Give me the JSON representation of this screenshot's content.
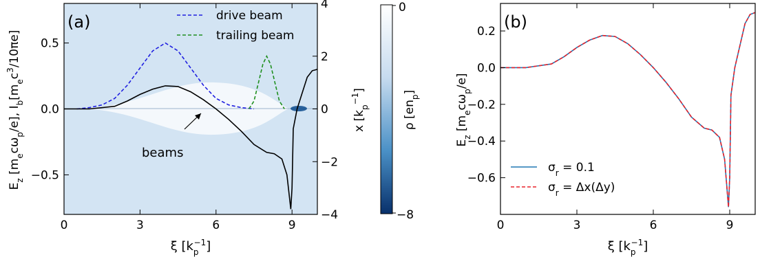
{
  "chart_data": [
    {
      "panel_label": "(a)",
      "type": "line",
      "xlabel": "ξ [k",
      "xlabel_sup": "−1",
      "xlabel_sub": "p",
      "xlabel_tail": "]",
      "ylabel_left": "E",
      "ylabel_left_parts": {
        "a": "z",
        "b": " [m",
        "c": "e",
        "d": "cω",
        "e": "p",
        "f": "/e],  I",
        "g": "b",
        "h": "[m",
        "i": "e",
        "j": "c",
        "k": "3",
        "l": "/10πe]"
      },
      "ylabel_right": "x [k",
      "ylabel_right_sup": "−1",
      "ylabel_right_sub": "p",
      "ylabel_right_tail": "]",
      "xlim": [
        0,
        10
      ],
      "ylim_left": [
        -0.8,
        0.8
      ],
      "ylim_right": [
        -4,
        4
      ],
      "xticks": [
        0,
        3,
        6,
        9
      ],
      "xtick_labels": [
        "0",
        "3",
        "6",
        "9"
      ],
      "yticks_left": [
        -0.5,
        0.0,
        0.5
      ],
      "ytick_labels_left": [
        "−0.5",
        "0.0",
        "0.5"
      ],
      "yticks_right": [
        -4,
        -2,
        0,
        2,
        4
      ],
      "ytick_labels_right": [
        "−4",
        "−2",
        "0",
        "2",
        "4"
      ],
      "legend_position": "top-right",
      "series": [
        {
          "name": "drive beam",
          "style": "dashed",
          "color": "#1f1fe0",
          "x": [
            0.5,
            1,
            1.5,
            2,
            2.5,
            3,
            3.5,
            4,
            4.5,
            5,
            5.5,
            6,
            6.5,
            7,
            7.5
          ],
          "y": [
            0.0,
            0.01,
            0.03,
            0.08,
            0.18,
            0.31,
            0.44,
            0.5,
            0.44,
            0.31,
            0.18,
            0.08,
            0.03,
            0.01,
            0.0
          ]
        },
        {
          "name": "trailing beam",
          "style": "dashed",
          "color": "#1f8f1f",
          "x": [
            7.3,
            7.5,
            7.7,
            7.85,
            8.0,
            8.15,
            8.3,
            8.5,
            8.7
          ],
          "y": [
            0.0,
            0.06,
            0.22,
            0.34,
            0.4,
            0.34,
            0.22,
            0.06,
            0.0
          ]
        },
        {
          "name": "",
          "style": "solid",
          "color": "#000000",
          "x": [
            0,
            1,
            2,
            2.5,
            3,
            3.5,
            4,
            4.5,
            5,
            5.5,
            6,
            6.5,
            7,
            7.5,
            8,
            8.3,
            8.6,
            8.8,
            8.95,
            9.0,
            9.05,
            9.2,
            9.4,
            9.6,
            9.8,
            10
          ],
          "y": [
            0.0,
            0.0,
            0.02,
            0.06,
            0.11,
            0.15,
            0.175,
            0.17,
            0.13,
            0.07,
            0.0,
            -0.08,
            -0.17,
            -0.27,
            -0.33,
            -0.34,
            -0.38,
            -0.5,
            -0.76,
            -0.6,
            -0.15,
            0.0,
            0.12,
            0.24,
            0.29,
            0.3
          ]
        }
      ],
      "annotation": {
        "text": "beams",
        "arrow_to_x": 5.5,
        "arrow_to_y": -0.02,
        "text_x": 4.1,
        "text_y": -0.55
      }
    },
    {
      "panel_label": "(b)",
      "type": "line",
      "xlabel": "ξ [k",
      "xlabel_sup": "−1",
      "xlabel_sub": "p",
      "xlabel_tail": "]",
      "ylabel": "E",
      "ylabel_parts": {
        "a": "z",
        "b": " [m",
        "c": "e",
        "d": "cω",
        "e": "p",
        "f": "/e]"
      },
      "xlim": [
        0,
        10
      ],
      "ylim": [
        -0.8,
        0.35
      ],
      "xticks": [
        0,
        3,
        6,
        9
      ],
      "xtick_labels": [
        "0",
        "3",
        "6",
        "9"
      ],
      "yticks": [
        -0.6,
        -0.4,
        -0.2,
        0.0,
        0.2
      ],
      "ytick_labels": [
        "−0.6",
        "−0.4",
        "−0.2",
        "0.0",
        "0.2"
      ],
      "legend_position": "bottom-left",
      "series": [
        {
          "name": "σ_r = 0.1",
          "label_main": "σ",
          "label_sub": "r",
          "label_tail": " = 0.1",
          "style": "solid",
          "color": "#1f77b4",
          "x": [
            0,
            1,
            2,
            2.5,
            3,
            3.5,
            4,
            4.5,
            5,
            5.5,
            6,
            6.5,
            7,
            7.5,
            8,
            8.3,
            8.6,
            8.8,
            8.95,
            9.0,
            9.05,
            9.2,
            9.4,
            9.6,
            9.8,
            10
          ],
          "y": [
            0.0,
            0.0,
            0.02,
            0.06,
            0.11,
            0.15,
            0.175,
            0.17,
            0.13,
            0.07,
            0.0,
            -0.08,
            -0.17,
            -0.27,
            -0.33,
            -0.34,
            -0.38,
            -0.5,
            -0.76,
            -0.6,
            -0.15,
            0.0,
            0.12,
            0.24,
            0.29,
            0.3
          ]
        },
        {
          "name": "σ_r = Δx(Δy)",
          "label_main": "σ",
          "label_sub": "r",
          "label_tail": " = Δx(Δy)",
          "style": "dashed",
          "color": "#e8202a",
          "x": [
            0,
            1,
            2,
            2.5,
            3,
            3.5,
            4,
            4.5,
            5,
            5.5,
            6,
            6.5,
            7,
            7.5,
            8,
            8.3,
            8.6,
            8.8,
            8.95,
            9.0,
            9.05,
            9.2,
            9.4,
            9.6,
            9.8,
            10
          ],
          "y": [
            0.0,
            0.0,
            0.02,
            0.06,
            0.11,
            0.15,
            0.175,
            0.17,
            0.13,
            0.07,
            0.0,
            -0.08,
            -0.17,
            -0.27,
            -0.33,
            -0.34,
            -0.38,
            -0.5,
            -0.76,
            -0.6,
            -0.15,
            0.0,
            0.12,
            0.24,
            0.29,
            0.3
          ]
        }
      ]
    }
  ],
  "colorbar": {
    "label": "ρ [en",
    "label_sub": "p",
    "label_tail": "]",
    "range": [
      -8,
      0
    ],
    "tick_labels": [
      "0",
      "−8"
    ],
    "colors": [
      "#ffffff",
      "#08306b"
    ]
  }
}
